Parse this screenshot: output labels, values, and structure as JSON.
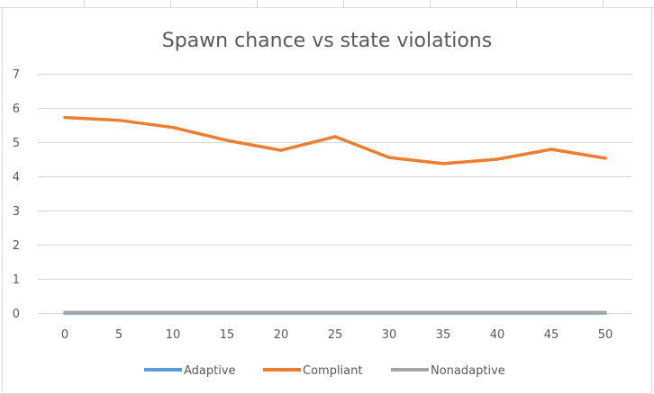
{
  "chart_data": {
    "type": "line",
    "title": "Spawn chance vs state violations",
    "xlabel": "",
    "ylabel": "",
    "categories": [
      "0",
      "5",
      "10",
      "15",
      "20",
      "25",
      "30",
      "35",
      "40",
      "45",
      "50"
    ],
    "ylim": [
      0,
      7
    ],
    "yticks": [
      "0",
      "1",
      "2",
      "3",
      "4",
      "5",
      "6",
      "7"
    ],
    "grid": true,
    "legend_position": "bottom",
    "series": [
      {
        "name": "Adaptive",
        "color": "#5B9BD5",
        "values": [
          0,
          0,
          0,
          0,
          0,
          0,
          0,
          0,
          0,
          0,
          0
        ]
      },
      {
        "name": "Compliant",
        "color": "#ED7D31",
        "values": [
          5.72,
          5.64,
          5.43,
          5.05,
          4.76,
          5.16,
          4.55,
          4.37,
          4.5,
          4.79,
          4.53
        ]
      },
      {
        "name": "Nonadaptive",
        "color": "#A5A5A5",
        "values": [
          0.02,
          0.02,
          0.02,
          0.02,
          0.02,
          0.02,
          0.02,
          0.02,
          0.02,
          0.02,
          0.02
        ]
      }
    ]
  }
}
